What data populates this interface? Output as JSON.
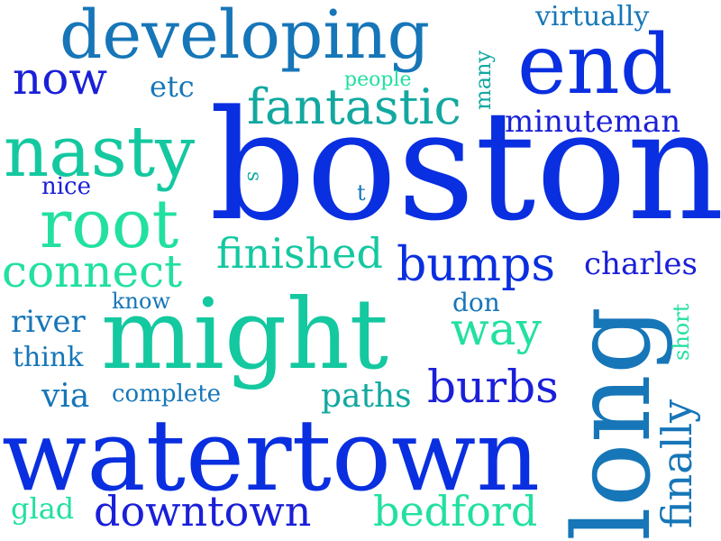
{
  "colors": {
    "blue": "#0a2fe0",
    "royal": "#1a1fd8",
    "steel": "#1676b8",
    "teal": "#12a8a0",
    "sea": "#14c8a0",
    "mint": "#22e0a0"
  },
  "words": {
    "boston": "boston",
    "watertown": "watertown",
    "long": "long",
    "might": "might",
    "developing": "developing",
    "end": "end",
    "nasty": "nasty",
    "root": "root",
    "fantastic": "fantastic",
    "connect": "connect",
    "finished": "finished",
    "bumps": "bumps",
    "burbs": "burbs",
    "downtown": "downtown",
    "bedford": "bedford",
    "way": "way",
    "finally": "finally",
    "now": "now",
    "minuteman": "minuteman",
    "charles": "charles",
    "virtually": "virtually",
    "etc": "etc",
    "paths": "paths",
    "via": "via",
    "river": "river",
    "think": "think",
    "complete": "complete",
    "don": "don",
    "people": "people",
    "many": "many",
    "nice": "nice",
    "know": "know",
    "glad": "glad",
    "short": "short",
    "s": "s",
    "t": "t"
  }
}
